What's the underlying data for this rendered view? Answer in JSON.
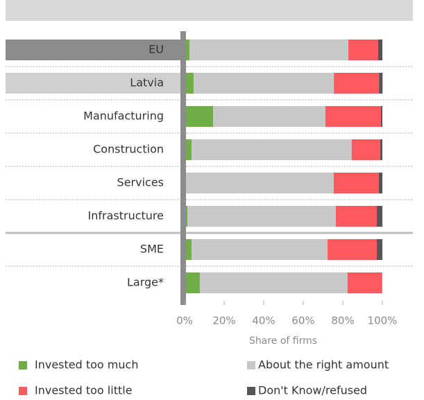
{
  "chart_data": {
    "type": "stacked-bar-horizontal",
    "categories": [
      "EU",
      "Latvia",
      "Manufacturing",
      "Construction",
      "Services",
      "Infrastructure",
      "SME",
      "Large*"
    ],
    "series": [
      {
        "name": "Invested too much",
        "color": "#70ad47",
        "values": [
          2.5,
          4.6,
          14.4,
          3.5,
          0.3,
          1.4,
          3.5,
          7.7
        ]
      },
      {
        "name": "About the right amount",
        "color": "#c8c8c8",
        "values": [
          80.3,
          70.9,
          56.8,
          81.0,
          75.1,
          75.1,
          68.8,
          74.7
        ]
      },
      {
        "name": "Invested too little",
        "color": "#ff5a5f",
        "values": [
          15.1,
          22.8,
          28.1,
          14.4,
          22.8,
          20.7,
          24.9,
          17.5
        ]
      },
      {
        "name": "Don't Know/refused",
        "color": "#555555",
        "values": [
          2.1,
          1.8,
          0.7,
          1.1,
          1.8,
          2.8,
          2.8,
          0
        ]
      }
    ],
    "xlim": [
      0,
      100
    ],
    "xticks": [
      {
        "value": 0,
        "label": "0%"
      },
      {
        "value": 20,
        "label": "20%"
      },
      {
        "value": 40,
        "label": "40%"
      },
      {
        "value": 60,
        "label": "60%"
      },
      {
        "value": 80,
        "label": "80%"
      },
      {
        "value": 100,
        "label": "100%"
      }
    ],
    "xlabel": "Share of firms",
    "legend": "bottom"
  }
}
